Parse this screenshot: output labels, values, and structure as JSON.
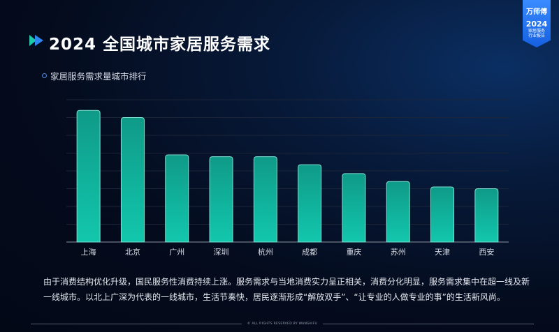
{
  "header": {
    "title": "2024 全国城市家居服务需求",
    "subtitle": "家居服务需求量城市排行"
  },
  "badge": {
    "brand": "万师傅",
    "year": "2024",
    "line1": "家居服务",
    "line2": "行业报告"
  },
  "chart_data": {
    "type": "bar",
    "title": "",
    "xlabel": "",
    "ylabel": "",
    "categories": [
      "上海",
      "北京",
      "广州",
      "深圳",
      "杭州",
      "成都",
      "重庆",
      "苏州",
      "天津",
      "西安"
    ],
    "values": [
      7.4,
      7.0,
      4.9,
      4.8,
      4.8,
      4.35,
      3.85,
      3.4,
      3.1,
      3.0
    ],
    "ylim": [
      0,
      8
    ],
    "grid": true,
    "y_ticks_shown": false,
    "colors": {
      "bar_top": "#0f9a88",
      "bar_bottom": "#12c7ad",
      "bar_edge": "#7fe0d0"
    }
  },
  "description": "由于消费结构优化升级，国民服务性消费持续上涨。服务需求与当地消费实力呈正相关，消费分化明显，服务需求集中在超一线及新一线城市。以北上广深为代表的一线城市，生活节奏快，居民逐渐形成“解放双手”、“让专业的人做专业的事”的生活新风尚。",
  "footer": "© ALL RIGHTS RESERVED BY WANSHIFU"
}
